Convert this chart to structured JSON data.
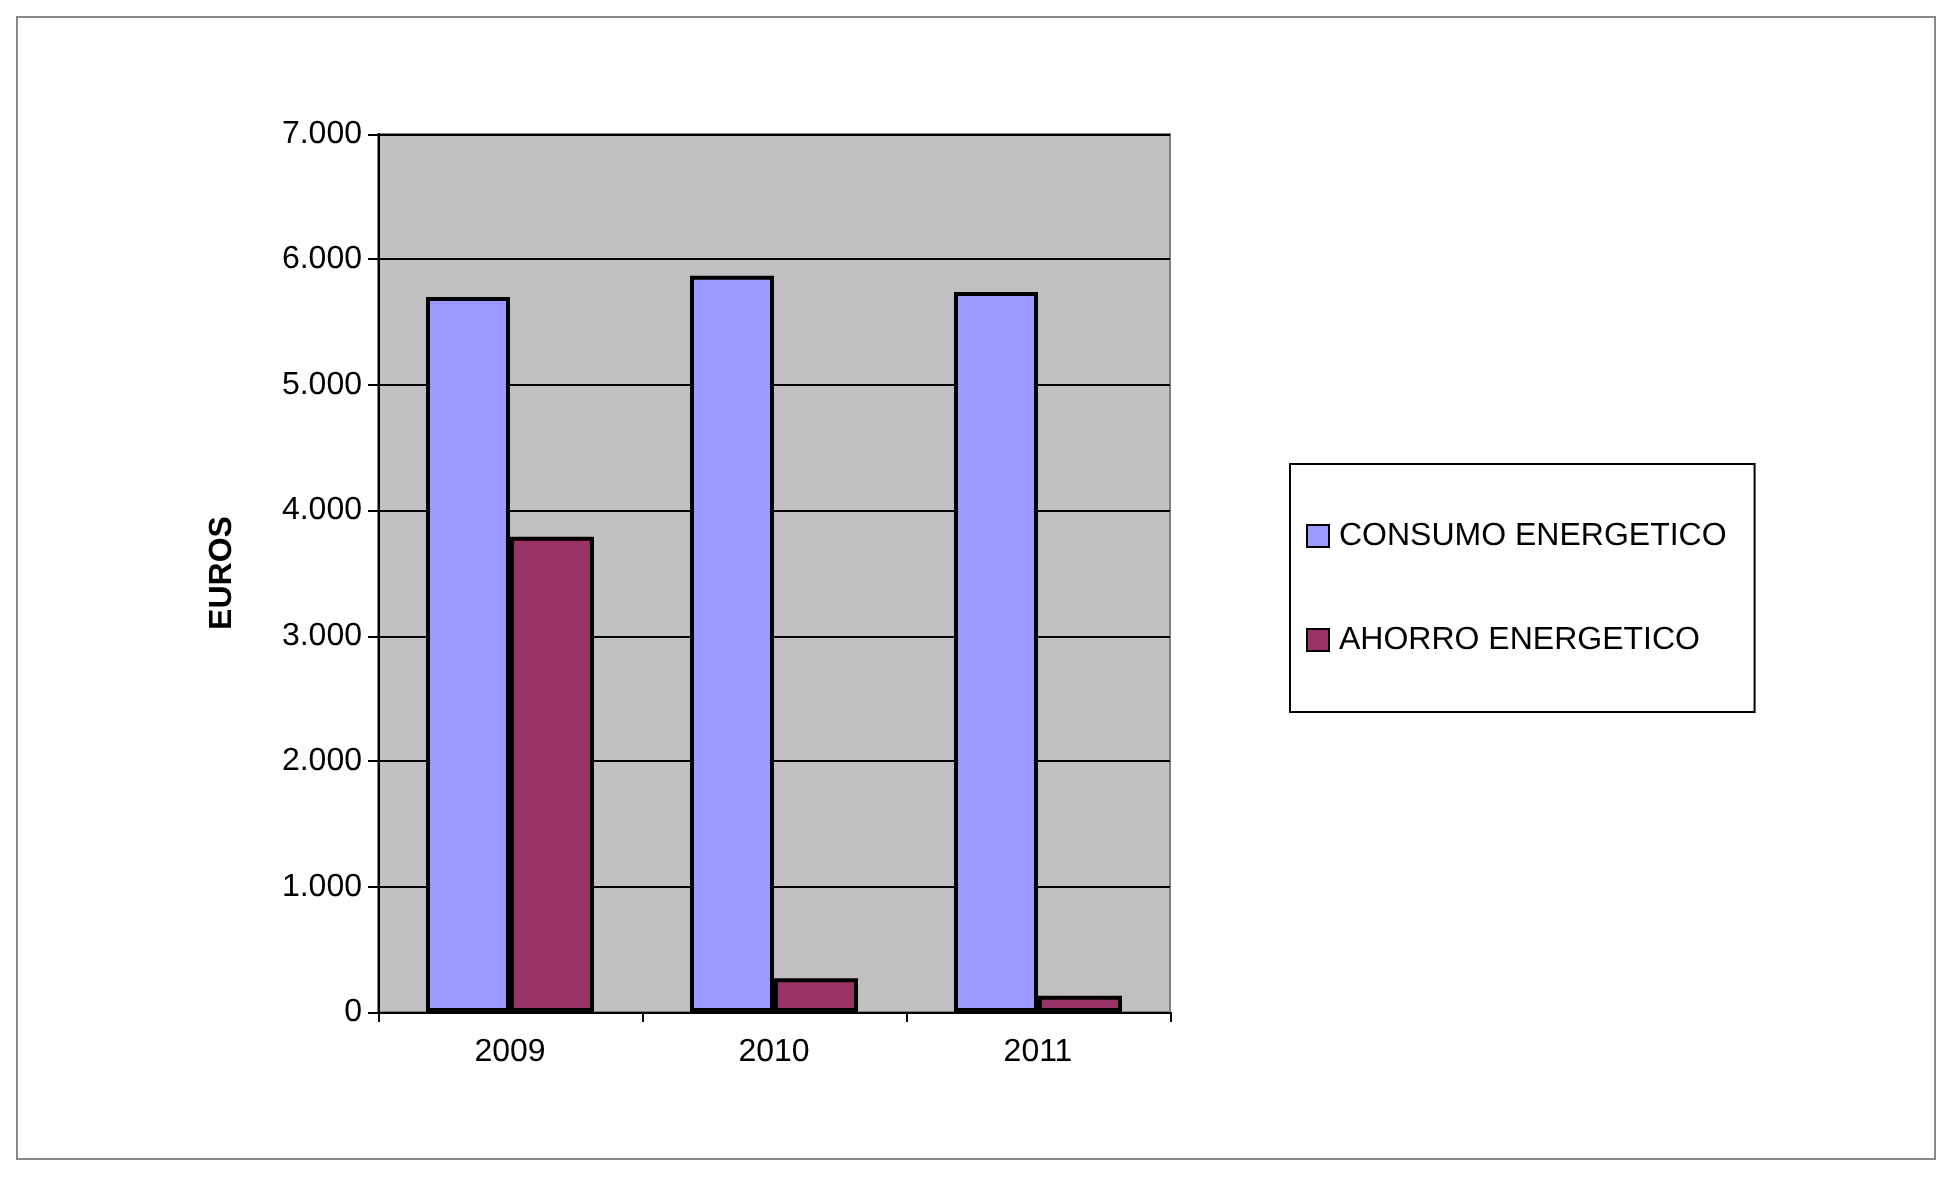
{
  "chart_data": {
    "type": "bar",
    "ylabel": "EUROS",
    "categories": [
      "2009",
      "2010",
      "2011"
    ],
    "series": [
      {
        "name": "CONSUMO ENERGETICO",
        "color": "#9999ff",
        "values": [
          5700,
          5870,
          5740
        ]
      },
      {
        "name": "AHORRO ENERGETICO",
        "color": "#993366",
        "values": [
          3790,
          270,
          130
        ]
      }
    ],
    "ylim": [
      0,
      7000
    ],
    "yticks": [
      0,
      {
        "value": 1000,
        "label": "1.000"
      },
      {
        "value": 2000,
        "label": "2.000"
      },
      {
        "value": 3000,
        "label": "3.000"
      },
      {
        "value": 4000,
        "label": "4.000"
      },
      {
        "value": 5000,
        "label": "5.000"
      },
      {
        "value": 6000,
        "label": "6.000"
      },
      {
        "value": 7000,
        "label": "7.000"
      }
    ],
    "grid": "y",
    "legend": "right"
  }
}
